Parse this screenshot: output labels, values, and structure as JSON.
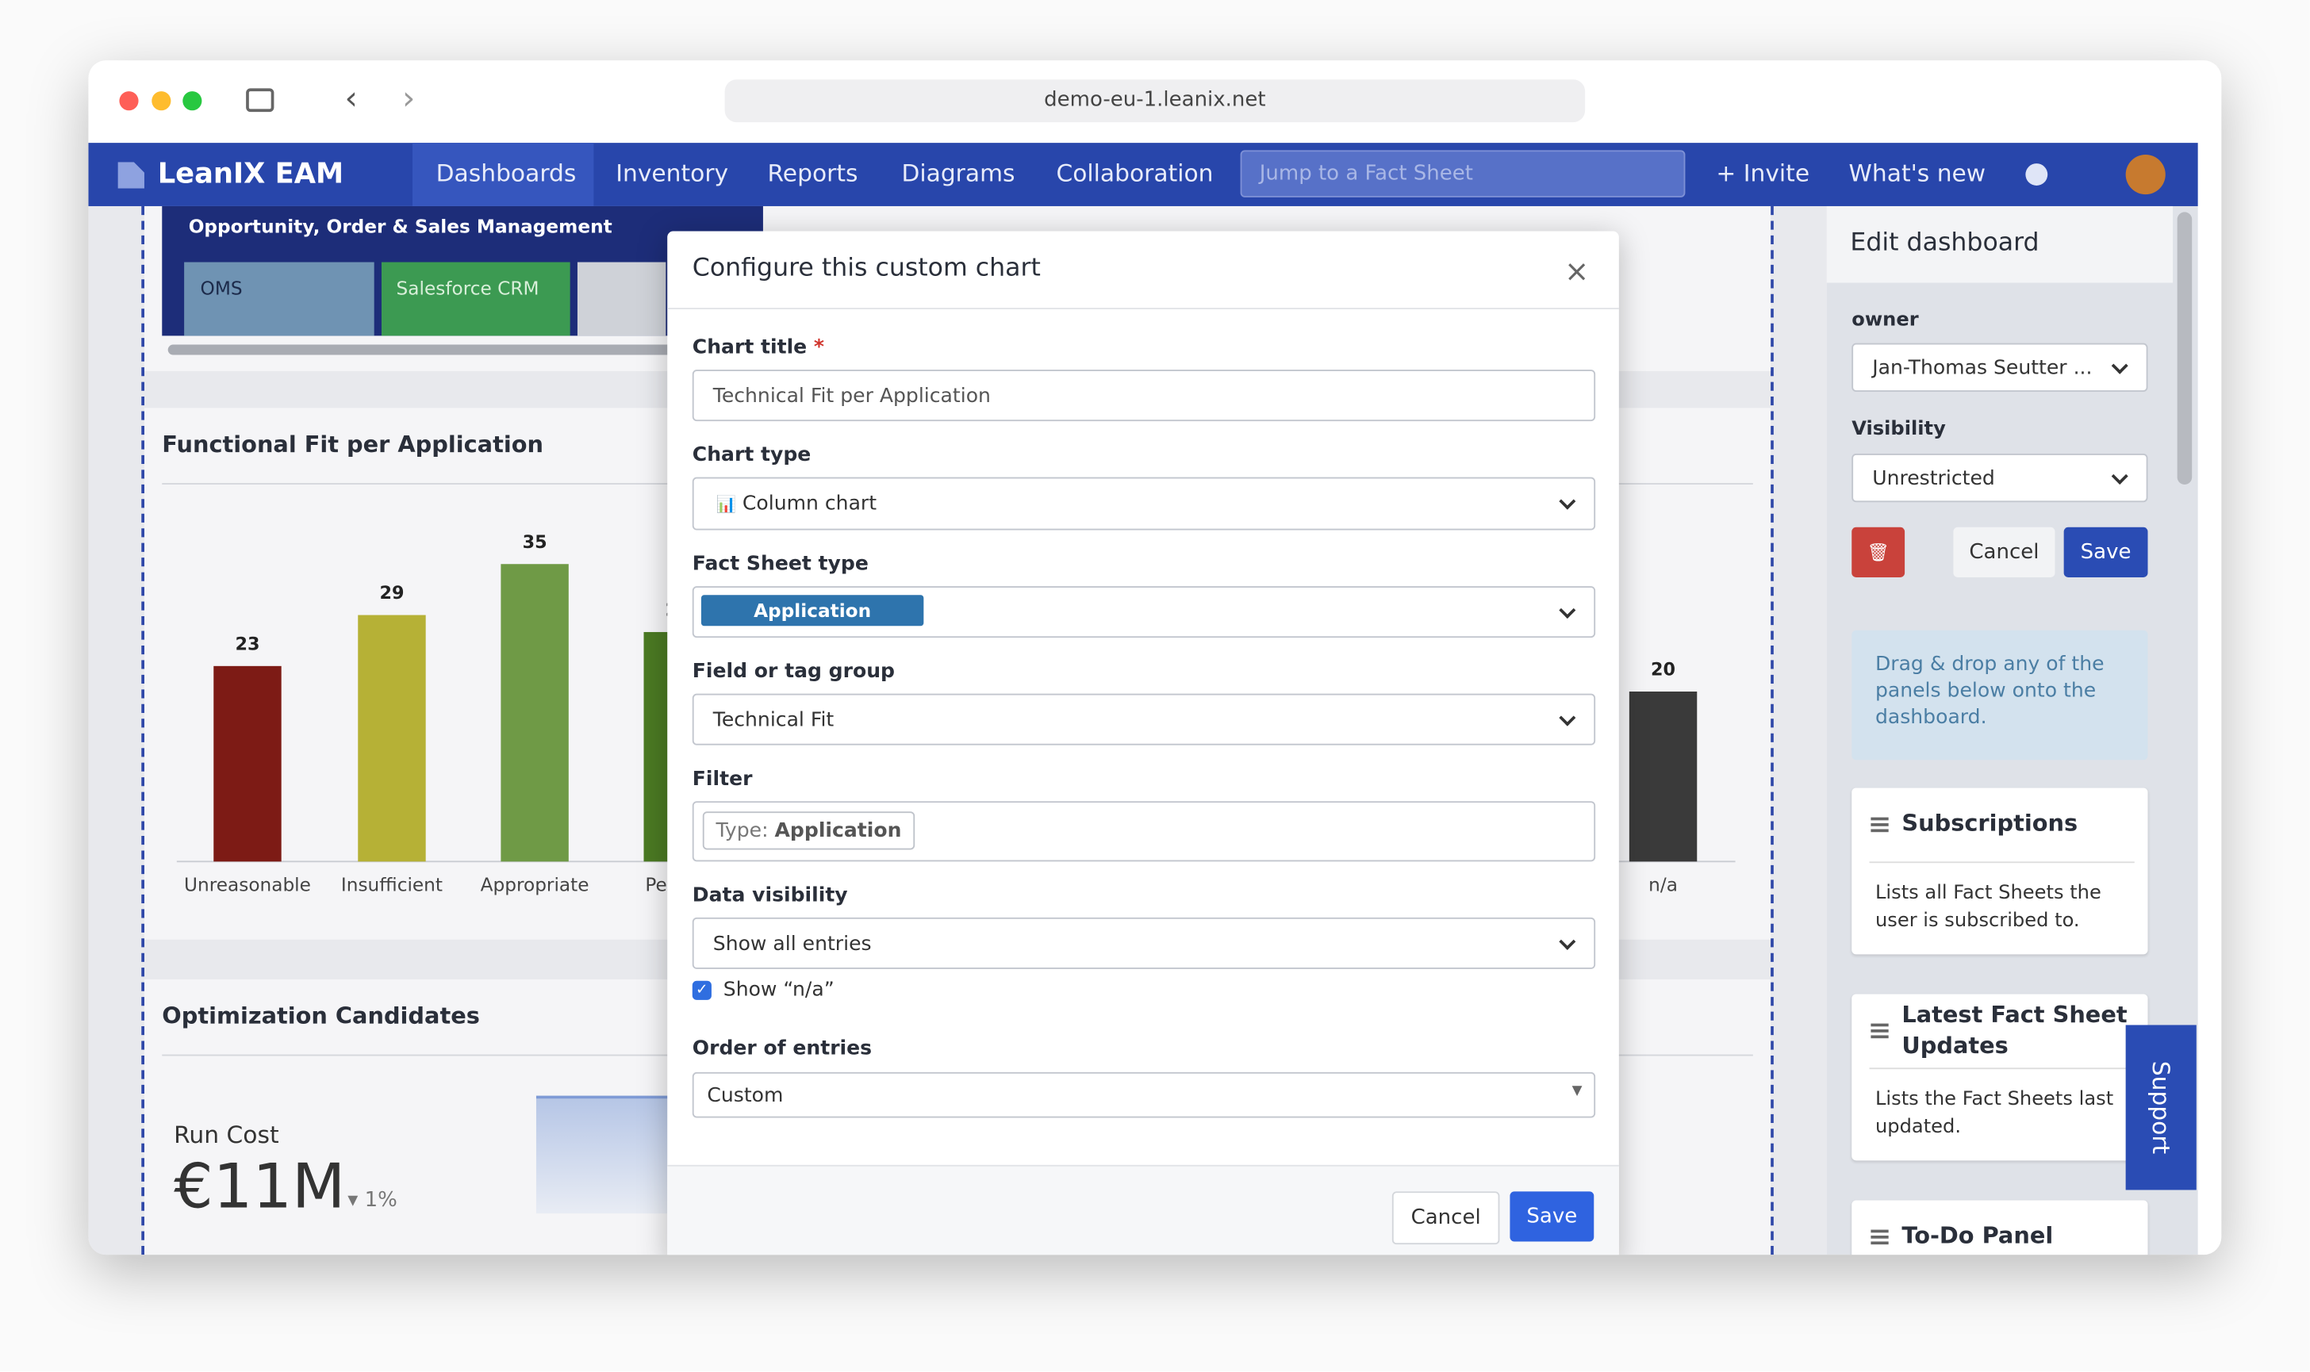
{
  "browser": {
    "url": "demo-eu-1.leanix.net"
  },
  "nav": {
    "brand": "LeanIX EAM",
    "items": [
      "Dashboards",
      "Inventory",
      "Reports",
      "Diagrams",
      "Collaboration"
    ],
    "search_placeholder": "Jump to a Fact Sheet",
    "invite": "+ Invite",
    "whats_new": "What's new"
  },
  "dashboard": {
    "top_panel": {
      "title": "Opportunity, Order & Sales Management",
      "items": [
        "OMS",
        "Salesforce CRM"
      ]
    },
    "chart_panel": {
      "title": "Functional Fit per Application",
      "categories": [
        "Unreasonable",
        "Insufficient",
        "Appropriate",
        "Pe",
        "n/a"
      ],
      "values": [
        23,
        29,
        35,
        27,
        20
      ],
      "colors": [
        "#7d1b15",
        "#b6b136",
        "#6f9a46",
        "#4b7a23",
        "#3a3a3a"
      ]
    },
    "optimization_panel": {
      "title": "Optimization Candidates",
      "metric": "Run Cost",
      "value": "€11M",
      "change": "1%"
    }
  },
  "modal": {
    "title": "Configure this custom chart",
    "fields": [
      {
        "label": "Chart title",
        "required": "*",
        "value": "Technical Fit per Application"
      },
      {
        "label": "Chart type",
        "value": "Column chart"
      },
      {
        "label": "Fact Sheet type",
        "value": "Application"
      },
      {
        "label": "Field or tag group",
        "value": "Technical Fit"
      },
      {
        "label": "Filter",
        "key": "Type:",
        "value": "Application"
      },
      {
        "label": "Data visibility",
        "value": "Show all entries"
      },
      {
        "label": "Order of entries",
        "value": "Custom"
      }
    ],
    "checkbox": "Show “n/a”",
    "cancel": "Cancel",
    "save": "Save"
  },
  "sidebar": {
    "title": "Edit dashboard",
    "owner_label": "owner",
    "owner": "Jan-Thomas Seutter ...",
    "visibility_label": "Visibility",
    "visibility": "Unrestricted",
    "cancel": "Cancel",
    "save": "Save",
    "info": "Drag & drop any of the panels below onto the dashboard.",
    "panels": [
      {
        "title": "Subscriptions",
        "description": "Lists all Fact Sheets the user is subscribed to."
      },
      {
        "title": "Latest Fact Sheet Updates",
        "description": "Lists the Fact Sheets last updated."
      },
      {
        "title": "To-Do Panel"
      }
    ],
    "support": "Support"
  }
}
